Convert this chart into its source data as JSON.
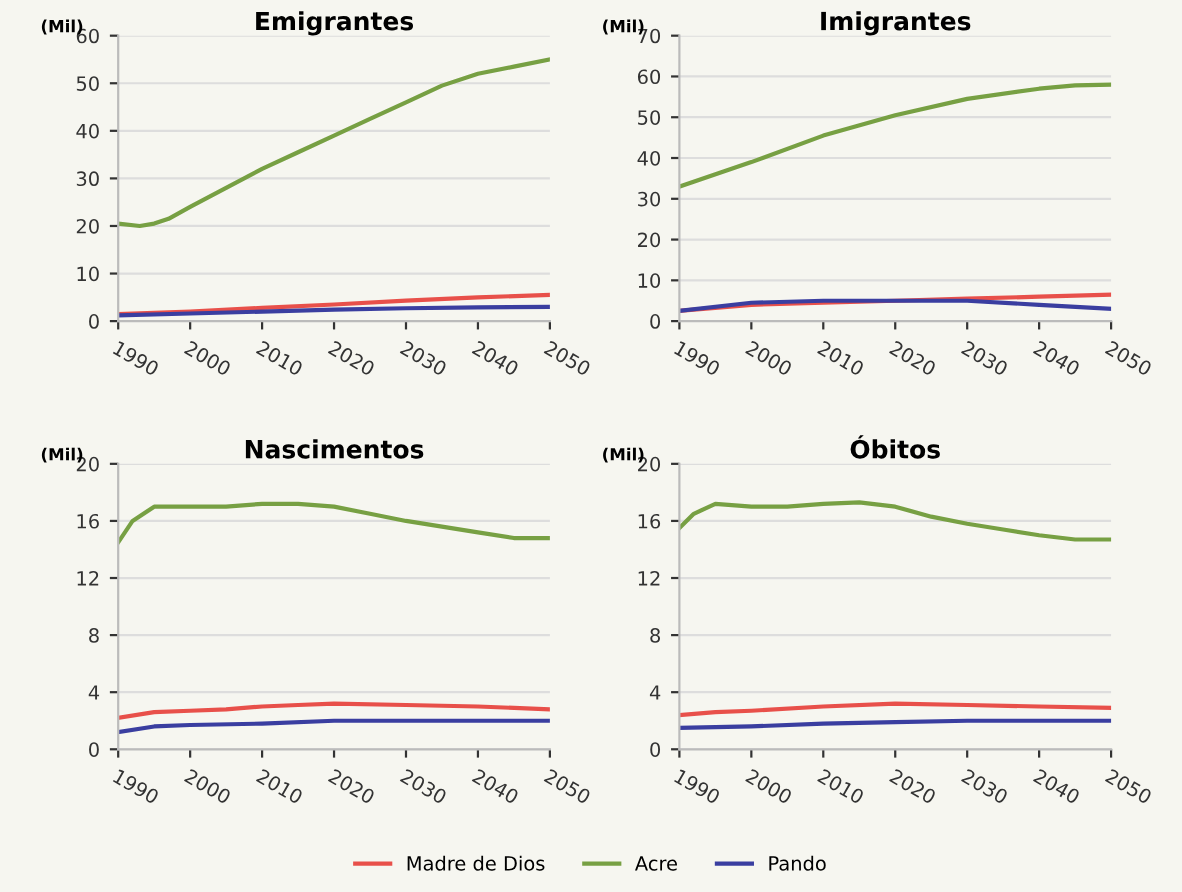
{
  "chart_data": [
    {
      "type": "line",
      "title": "Emigrantes",
      "ylabel": "(Mil)",
      "xlim": [
        1990,
        2050
      ],
      "xticks": [
        1990,
        2000,
        2010,
        2020,
        2030,
        2040,
        2050
      ],
      "ylim": [
        0,
        60
      ],
      "yticks": [
        0,
        10,
        20,
        30,
        40,
        50,
        60
      ],
      "grid": "y",
      "tick_labels": "xy",
      "series": [
        {
          "color": "#e8504a",
          "x": [
            1990,
            2000,
            2010,
            2020,
            2030,
            2040,
            2050
          ],
          "values": [
            1.5,
            2,
            2.8,
            3.5,
            4.3,
            5,
            5.5
          ]
        },
        {
          "color": "#77a043",
          "x": [
            1990,
            1993,
            1995,
            1997,
            2000,
            2005,
            2010,
            2015,
            2020,
            2025,
            2030,
            2035,
            2040,
            2045,
            2050
          ],
          "values": [
            20.5,
            20,
            20.5,
            21.5,
            24,
            28,
            32,
            35.5,
            39,
            42.5,
            46,
            49.5,
            52,
            53.5,
            55
          ]
        },
        {
          "color": "#3a3ea0",
          "x": [
            1990,
            2000,
            2010,
            2020,
            2030,
            2040,
            2050
          ],
          "values": [
            1.2,
            1.6,
            2,
            2.4,
            2.7,
            2.9,
            3
          ]
        }
      ]
    },
    {
      "type": "line",
      "title": "Imigrantes",
      "ylabel": "(Mil)",
      "xlim": [
        1990,
        2050
      ],
      "xticks": [
        1990,
        2000,
        2010,
        2020,
        2030,
        2040,
        2050
      ],
      "ylim": [
        0,
        70
      ],
      "yticks": [
        0,
        10,
        20,
        30,
        40,
        50,
        60,
        70
      ],
      "grid": "y",
      "series": [
        {
          "color": "#e8504a",
          "x": [
            1990,
            2000,
            2010,
            2020,
            2030,
            2040,
            2050
          ],
          "values": [
            2.5,
            4,
            4.5,
            5,
            5.5,
            6,
            6.5
          ]
        },
        {
          "color": "#77a043",
          "x": [
            1990,
            2000,
            2010,
            2020,
            2030,
            2040,
            2045,
            2050
          ],
          "values": [
            33,
            39,
            45.5,
            50.5,
            54.5,
            57,
            57.8,
            58
          ]
        },
        {
          "color": "#3a3ea0",
          "x": [
            1990,
            2000,
            2010,
            2020,
            2030,
            2040,
            2050
          ],
          "values": [
            2.5,
            4.5,
            5,
            5,
            5,
            4,
            3
          ]
        }
      ]
    },
    {
      "type": "line",
      "title": "Nascimentos",
      "ylabel": "(Mil)",
      "xlim": [
        1990,
        2050
      ],
      "xticks": [
        1990,
        2000,
        2010,
        2020,
        2030,
        2040,
        2050
      ],
      "ylim": [
        0,
        20
      ],
      "yticks": [
        0,
        4,
        8,
        12,
        16,
        20
      ],
      "grid": "y",
      "series": [
        {
          "color": "#e8504a",
          "x": [
            1990,
            1995,
            2000,
            2005,
            2010,
            2015,
            2020,
            2030,
            2040,
            2050
          ],
          "values": [
            2.2,
            2.6,
            2.7,
            2.8,
            3,
            3.1,
            3.2,
            3.1,
            3,
            2.8
          ]
        },
        {
          "color": "#77a043",
          "x": [
            1990,
            1992,
            1995,
            2000,
            2005,
            2010,
            2015,
            2020,
            2025,
            2030,
            2035,
            2040,
            2045,
            2050
          ],
          "values": [
            14.5,
            16,
            17,
            17,
            17,
            17.2,
            17.2,
            17,
            16.5,
            16,
            15.6,
            15.2,
            14.8,
            14.8
          ]
        },
        {
          "color": "#3a3ea0",
          "x": [
            1990,
            1995,
            2000,
            2010,
            2020,
            2030,
            2040,
            2050
          ],
          "values": [
            1.2,
            1.6,
            1.7,
            1.8,
            2,
            2,
            2,
            2
          ]
        }
      ]
    },
    {
      "type": "line",
      "title": "Óbitos",
      "ylabel": "(Mil)",
      "xlim": [
        1990,
        2050
      ],
      "xticks": [
        1990,
        2000,
        2010,
        2020,
        2030,
        2040,
        2050
      ],
      "ylim": [
        0,
        20
      ],
      "yticks": [
        0,
        4,
        8,
        12,
        16,
        20
      ],
      "grid": "y",
      "legend": "bottom",
      "series": [
        {
          "name": "Madre de Dios",
          "color": "#e8504a",
          "x": [
            1990,
            1995,
            2000,
            2010,
            2020,
            2030,
            2040,
            2050
          ],
          "values": [
            2.4,
            2.6,
            2.7,
            3,
            3.2,
            3.1,
            3,
            2.9
          ]
        },
        {
          "name": "Acre",
          "color": "#77a043",
          "x": [
            1990,
            1992,
            1995,
            2000,
            2005,
            2010,
            2015,
            2020,
            2025,
            2030,
            2035,
            2040,
            2045,
            2050
          ],
          "values": [
            15.5,
            16.5,
            17.2,
            17,
            17,
            17.2,
            17.3,
            17,
            16.3,
            15.8,
            15.4,
            15,
            14.7,
            14.7
          ]
        },
        {
          "name": "Pando",
          "color": "#3a3ea0",
          "x": [
            1990,
            2000,
            2010,
            2020,
            2030,
            2040,
            2050
          ],
          "values": [
            1.5,
            1.6,
            1.8,
            1.9,
            2,
            2,
            2
          ]
        }
      ]
    }
  ]
}
